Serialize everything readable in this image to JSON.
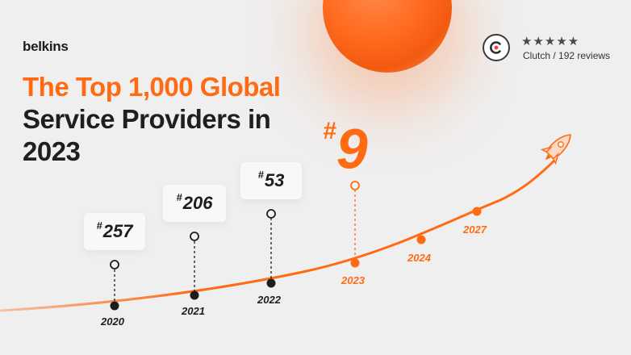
{
  "brand": {
    "logo_text": "belkins"
  },
  "headline": {
    "line1": "The Top 1,000 Global",
    "line2": "Service Providers in",
    "line3": "2023"
  },
  "clutch": {
    "stars": "★★★★★",
    "reviews": "Clutch / 192 reviews"
  },
  "timeline": {
    "milestones": [
      {
        "year": "2020",
        "rank": "257"
      },
      {
        "year": "2021",
        "rank": "206"
      },
      {
        "year": "2022",
        "rank": "53"
      },
      {
        "year": "2023",
        "rank": "9"
      }
    ],
    "future_years": [
      "2024",
      "2027"
    ],
    "hash": "#"
  },
  "colors": {
    "accent": "#ff6a13",
    "dark": "#1f1f1f",
    "background": "#efefef"
  },
  "icons": {
    "rocket": "rocket-icon",
    "clutch": "clutch-logo-icon"
  }
}
